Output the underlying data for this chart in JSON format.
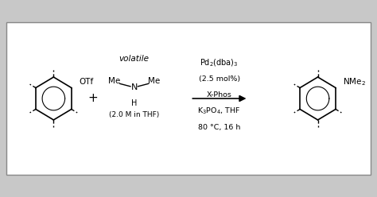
{
  "fig_bg": "#c8c8c8",
  "box_color": "#ffffff",
  "box_border": "#888888",
  "conditions_line1": "Pd$_2$(dba)$_3$",
  "conditions_line2": "(2.5 mol%)",
  "conditions_line3": "X-Phos",
  "conditions_line4": "K$_3$PO$_4$, THF",
  "conditions_line5": "80 °C, 16 h",
  "volatile_label": "volatile",
  "plus_sign": "+",
  "amine_sub": "(2.0 M in THF)"
}
